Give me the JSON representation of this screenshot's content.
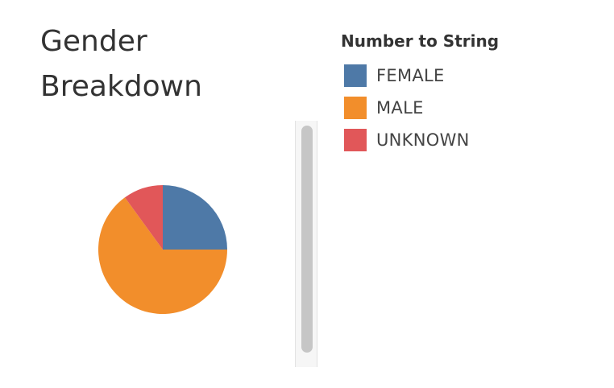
{
  "title_lines": [
    "Gender",
    "Breakdown"
  ],
  "legend": {
    "title": "Number to String",
    "items": [
      {
        "label": "FEMALE",
        "color": "#4e79a7"
      },
      {
        "label": "MALE",
        "color": "#f28e2b"
      },
      {
        "label": "UNKNOWN",
        "color": "#e15759"
      }
    ]
  },
  "chart_data": {
    "type": "pie",
    "title": "Gender Breakdown",
    "legend_title": "Number to String",
    "legend_position": "right",
    "categories": [
      "FEMALE",
      "MALE",
      "UNKNOWN"
    ],
    "values": [
      25,
      65,
      10
    ],
    "colors": [
      "#4e79a7",
      "#f28e2b",
      "#e15759"
    ]
  }
}
